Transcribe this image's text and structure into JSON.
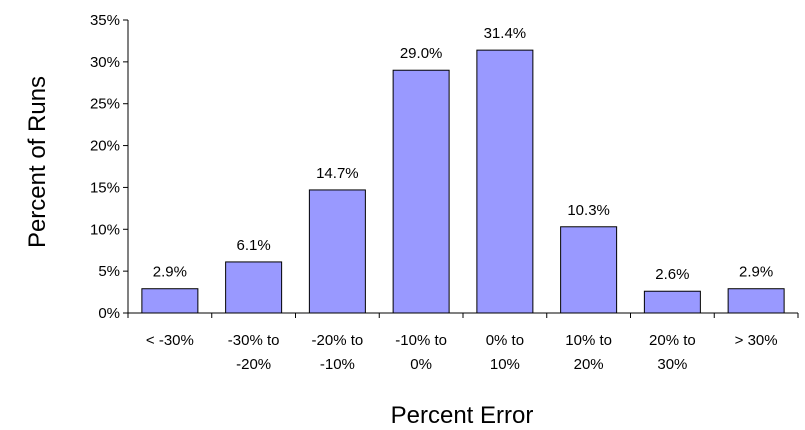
{
  "chart_data": {
    "type": "bar",
    "title": "",
    "xlabel": "Percent Error",
    "ylabel": "Percent of Runs",
    "categories": [
      [
        "< -30%"
      ],
      [
        "-30% to",
        "-20%"
      ],
      [
        "-20% to",
        "-10%"
      ],
      [
        "-10% to",
        "0%"
      ],
      [
        "0% to",
        "10%"
      ],
      [
        "10% to",
        "20%"
      ],
      [
        "20% to",
        "30%"
      ],
      [
        "> 30%"
      ]
    ],
    "values": [
      2.9,
      6.1,
      14.7,
      29.0,
      31.4,
      10.3,
      2.6,
      2.9
    ],
    "data_labels": [
      "2.9%",
      "6.1%",
      "14.7%",
      "29.0%",
      "31.4%",
      "10.3%",
      "2.6%",
      "2.9%"
    ],
    "ylim": [
      0,
      35
    ],
    "yticks": [
      0,
      5,
      10,
      15,
      20,
      25,
      30,
      35
    ],
    "ytick_labels": [
      "0%",
      "5%",
      "10%",
      "15%",
      "20%",
      "25%",
      "30%",
      "35%"
    ],
    "grid": false,
    "legend": "none",
    "colors": {
      "bar_fill": "#9999ff",
      "bar_stroke": "#000000",
      "axis": "#000000"
    }
  }
}
